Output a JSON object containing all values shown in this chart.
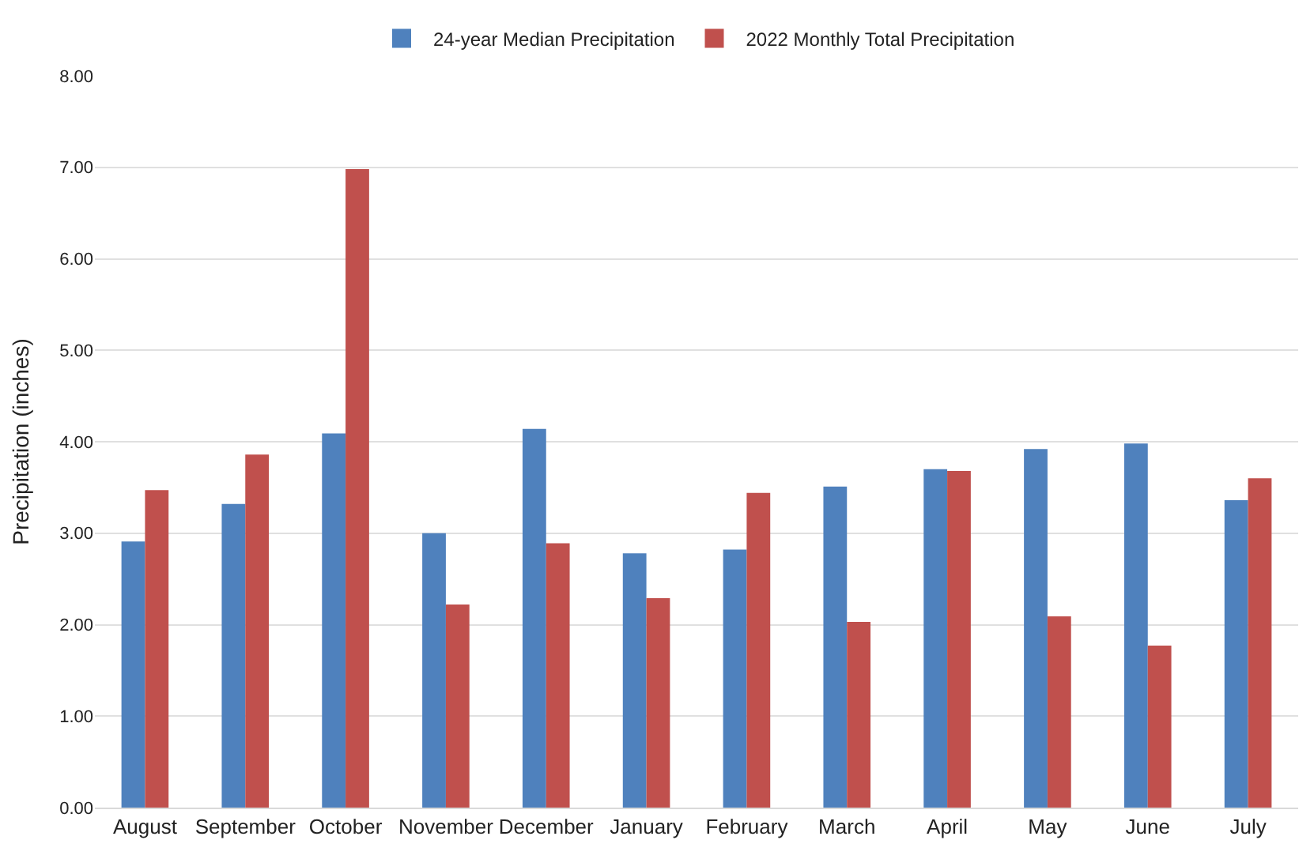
{
  "chart_data": {
    "type": "bar",
    "ylabel": "Precipitation (inches)",
    "categories": [
      "August",
      "September",
      "October",
      "November",
      "December",
      "January",
      "February",
      "March",
      "April",
      "May",
      "June",
      "July"
    ],
    "series": [
      {
        "name": "24-year Median Precipitation",
        "color": "#4f81bd",
        "values": [
          2.91,
          3.32,
          4.09,
          3.0,
          4.14,
          2.78,
          2.82,
          3.51,
          3.7,
          3.92,
          3.98,
          3.36
        ]
      },
      {
        "name": "2022 Monthly Total Precipitation",
        "color": "#c0504d",
        "values": [
          3.47,
          3.86,
          6.98,
          2.22,
          2.89,
          2.29,
          3.44,
          2.03,
          3.68,
          2.09,
          1.77,
          3.6
        ]
      }
    ],
    "ylim": [
      0,
      8
    ],
    "yticks": [
      {
        "value": 0,
        "label": "0.00"
      },
      {
        "value": 1,
        "label": "1.00"
      },
      {
        "value": 2,
        "label": "2.00"
      },
      {
        "value": 3,
        "label": "3.00"
      },
      {
        "value": 4,
        "label": "4.00"
      },
      {
        "value": 5,
        "label": "5.00"
      },
      {
        "value": 6,
        "label": "6.00"
      },
      {
        "value": 7,
        "label": "7.00"
      },
      {
        "value": 8,
        "label": "8.00"
      }
    ],
    "grid": "y",
    "legend": "top"
  }
}
